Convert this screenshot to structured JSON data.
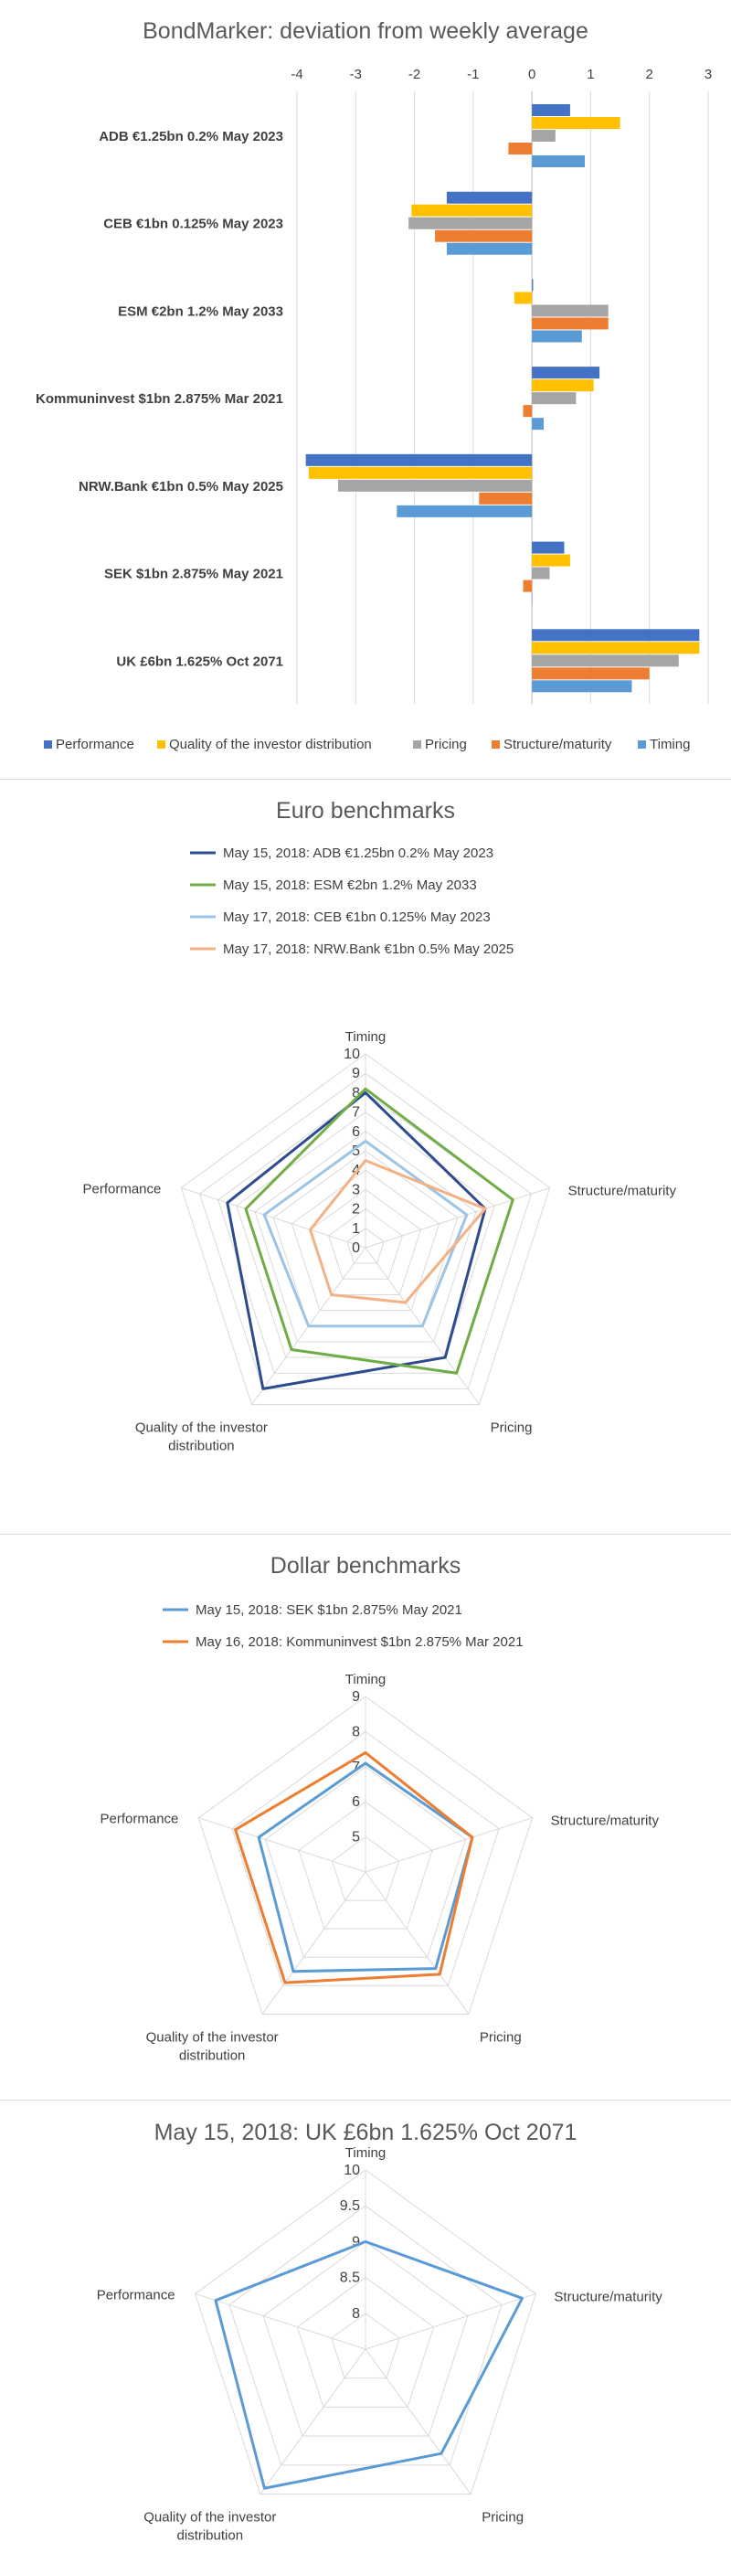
{
  "chart_data": [
    {
      "type": "bar",
      "orientation": "horizontal",
      "title": "BondMarker: deviation from weekly average",
      "xlim": [
        -4,
        3
      ],
      "x_ticks": [
        "-4",
        "-3",
        "-2",
        "-1",
        "0",
        "1",
        "2",
        "3"
      ],
      "categories": [
        "ADB €1.25bn 0.2% May 2023",
        "CEB €1bn 0.125% May 2023",
        "ESM €2bn 1.2% May 2033",
        "Kommuninvest $1bn 2.875% Mar 2021",
        "NRW.Bank €1bn 0.5% May 2025",
        "SEK $1bn 2.875% May 2021",
        "UK £6bn 1.625% Oct 2071"
      ],
      "series": [
        {
          "name": "Performance",
          "color": "#4472c4",
          "values": [
            0.65,
            -1.45,
            0.02,
            1.15,
            -3.85,
            0.55,
            2.85
          ]
        },
        {
          "name": "Quality of the investor distribution",
          "color": "#ffc000",
          "values": [
            1.5,
            -2.05,
            -0.3,
            1.05,
            -3.8,
            0.65,
            2.85
          ]
        },
        {
          "name": "Pricing",
          "color": "#a5a5a5",
          "values": [
            0.4,
            -2.1,
            1.3,
            0.75,
            -3.3,
            0.3,
            2.5
          ]
        },
        {
          "name": "Structure/maturity",
          "color": "#ed7d31",
          "values": [
            -0.4,
            -1.65,
            1.3,
            -0.15,
            -0.9,
            -0.15,
            2.0
          ]
        },
        {
          "name": "Timing",
          "color": "#5b9bd5",
          "values": [
            0.9,
            -1.45,
            0.85,
            0.2,
            -2.3,
            0.0,
            1.7
          ]
        }
      ],
      "grid": true,
      "legend": "bottom"
    },
    {
      "type": "radar",
      "title": "Euro benchmarks",
      "axes": [
        "Timing",
        "Structure/maturity",
        "Pricing",
        "Quality of the investor distribution",
        "Performance"
      ],
      "rlim": [
        0,
        10
      ],
      "r_ticks": [
        "0",
        "1",
        "2",
        "3",
        "4",
        "5",
        "6",
        "7",
        "8",
        "9",
        "10"
      ],
      "series": [
        {
          "name": "May 15, 2018: ADB €1.25bn 0.2% May 2023",
          "color": "#2e4b8f",
          "values": [
            8,
            6.5,
            7,
            9,
            7.5
          ]
        },
        {
          "name": "May 15, 2018: ESM €2bn 1.2% May 2033",
          "color": "#70ad47",
          "values": [
            8.2,
            8,
            8,
            6.5,
            6.5
          ]
        },
        {
          "name": "May 17, 2018: CEB €1bn 0.125% May 2023",
          "color": "#9dc3e6",
          "values": [
            5.5,
            5.5,
            5,
            5,
            5.5
          ]
        },
        {
          "name": "May 17, 2018: NRW.Bank €1bn 0.5% May 2025",
          "color": "#f4b183",
          "values": [
            4.5,
            6.5,
            3.5,
            3,
            3
          ]
        }
      ],
      "legend": "top"
    },
    {
      "type": "radar",
      "title": "Dollar benchmarks",
      "axes": [
        "Timing",
        "Structure/maturity",
        "Pricing",
        "Quality of the investor distribution",
        "Performance"
      ],
      "rlim": [
        4,
        9
      ],
      "r_ticks": [
        "",
        "5",
        "6",
        "7",
        "8",
        "9"
      ],
      "series": [
        {
          "name": "May 15, 2018: SEK $1bn 2.875% May 2021",
          "color": "#5b9bd5",
          "values": [
            7.1,
            7.2,
            7.4,
            7.5,
            7.2
          ]
        },
        {
          "name": "May 16, 2018: Kommuninvest $1bn 2.875% Mar 2021",
          "color": "#ed7d31",
          "values": [
            7.4,
            7.2,
            7.6,
            7.9,
            7.9
          ]
        }
      ],
      "legend": "top"
    },
    {
      "type": "radar",
      "title": "May 15, 2018: UK £6bn 1.625% Oct 2071",
      "axes": [
        "Timing",
        "Structure/maturity",
        "Pricing",
        "Quality of the investor distribution",
        "Performance"
      ],
      "rlim": [
        7.5,
        10
      ],
      "r_ticks": [
        "",
        "8",
        "8.5",
        "9",
        "9.5",
        "10"
      ],
      "series": [
        {
          "name": "",
          "color": "#5b9bd5",
          "values": [
            9,
            9.8,
            9.3,
            9.9,
            9.7
          ]
        }
      ],
      "legend": "none"
    }
  ]
}
